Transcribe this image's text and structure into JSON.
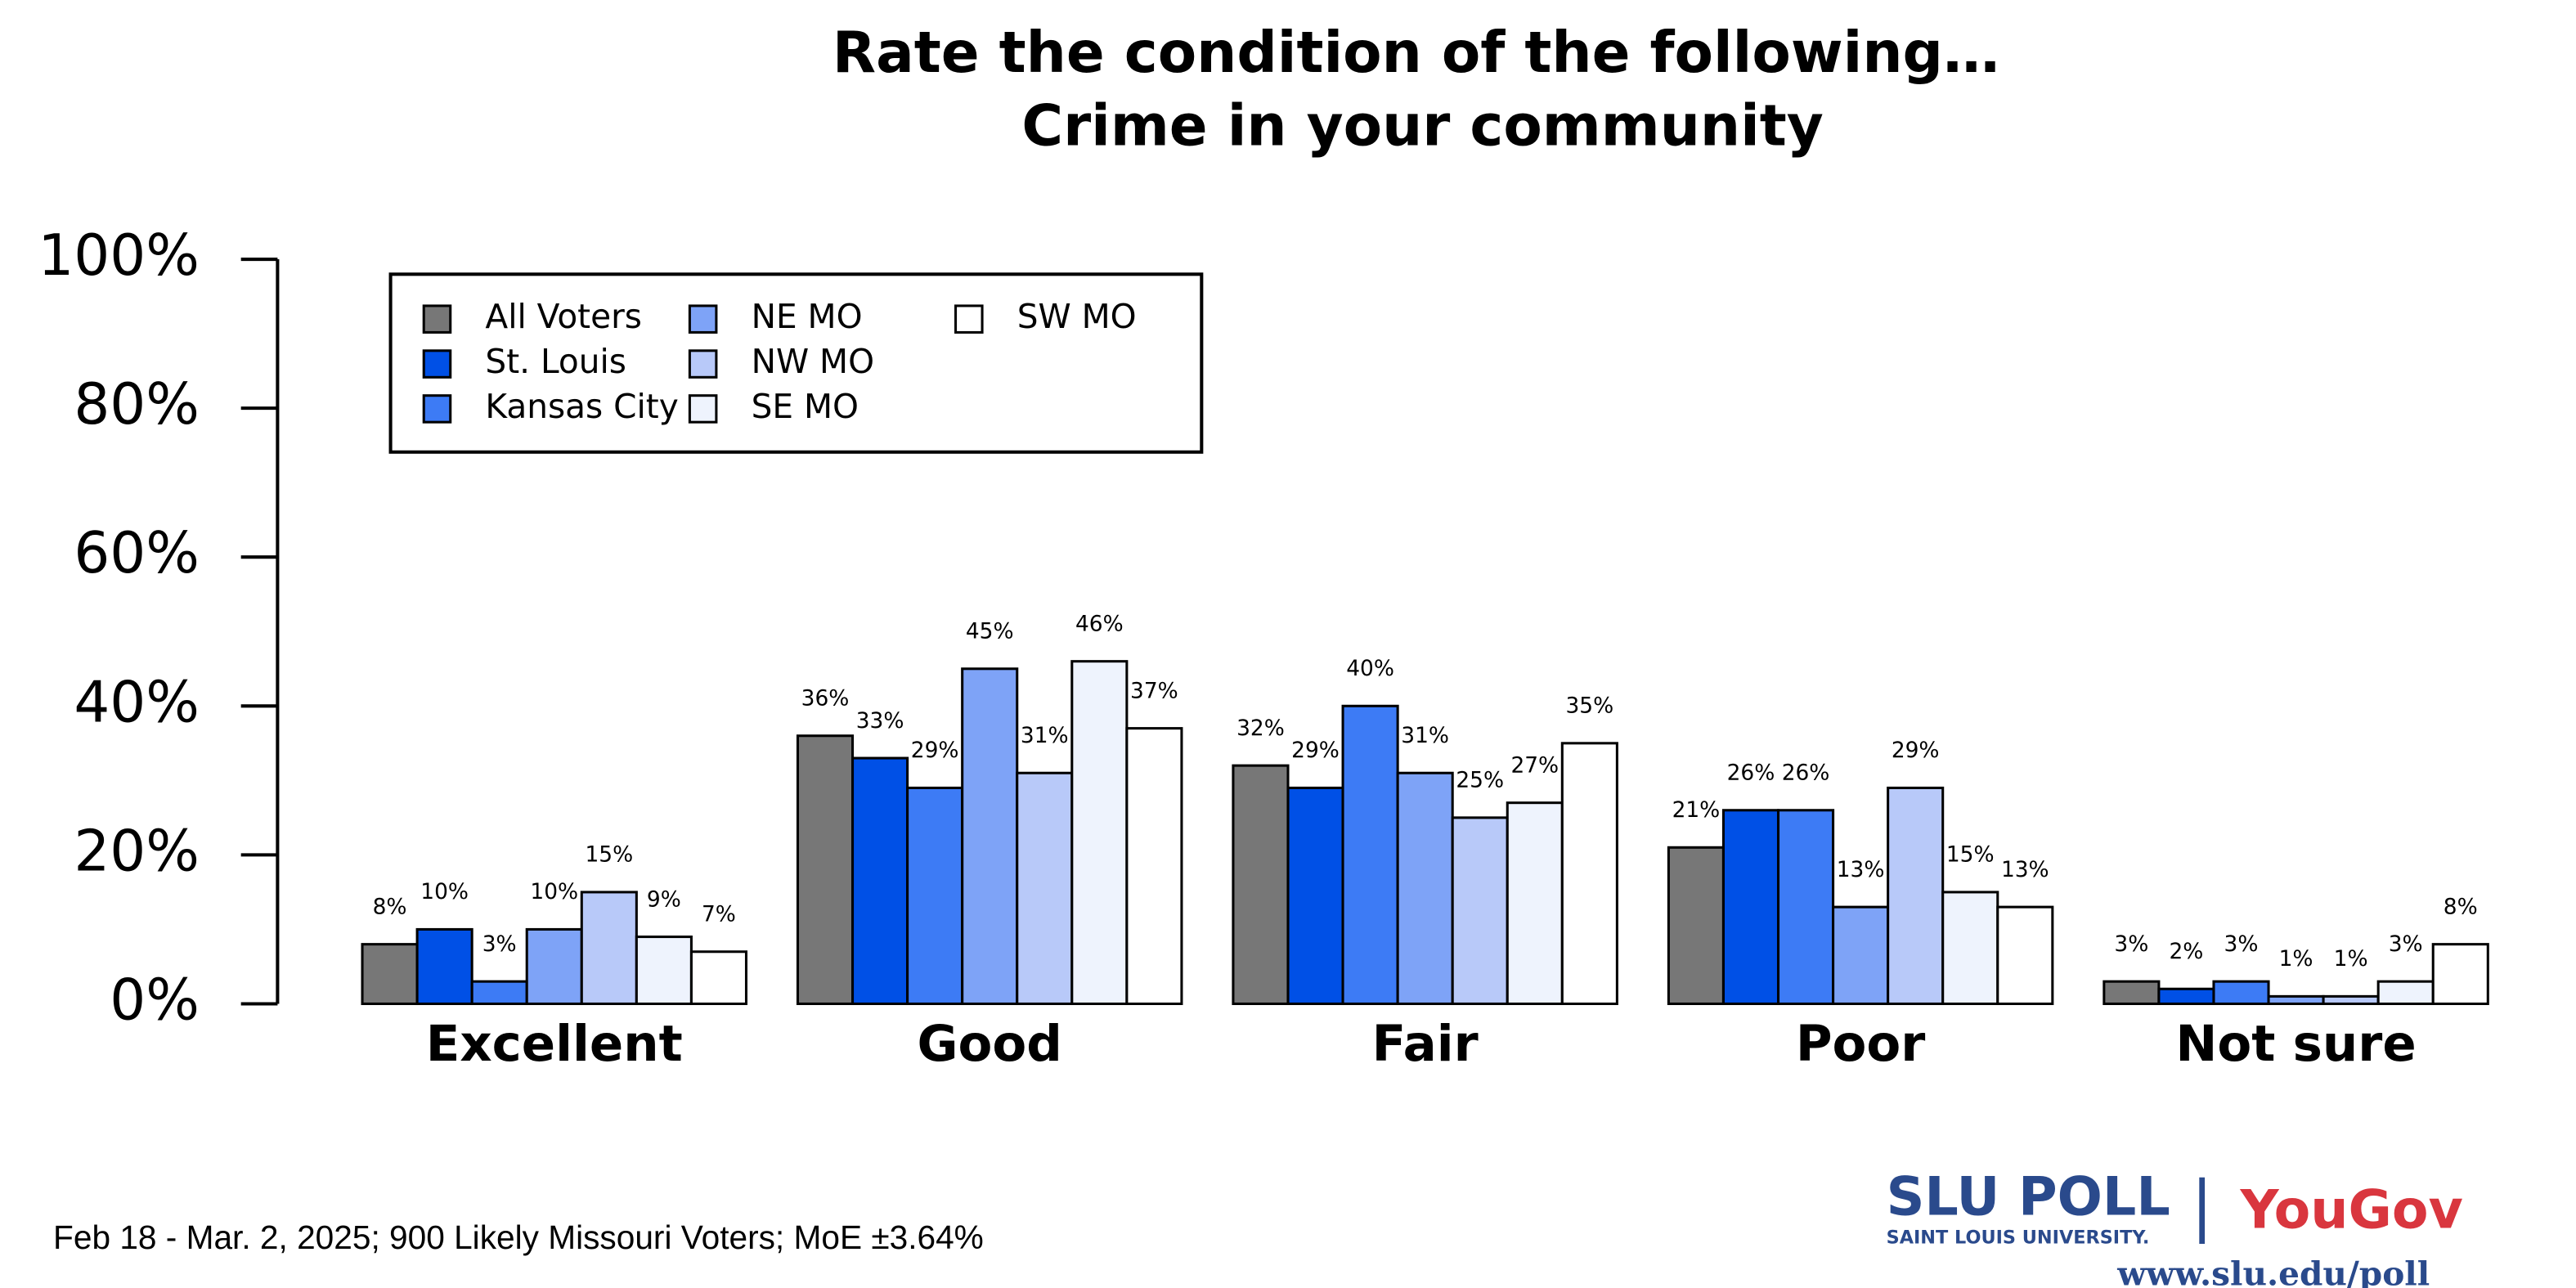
{
  "chart_data": {
    "type": "bar",
    "title": "Rate the condition of the following…",
    "subtitle": "Crime in your community",
    "categories": [
      "Excellent",
      "Good",
      "Fair",
      "Poor",
      "Not sure"
    ],
    "series": [
      {
        "name": "All Voters",
        "color": "#777777",
        "values": [
          8,
          36,
          32,
          21,
          3
        ],
        "value_labels": [
          "8%",
          "36%",
          "32%",
          "21%",
          "3%"
        ]
      },
      {
        "name": "St. Louis",
        "color": "#0050e6",
        "values": [
          10,
          33,
          29,
          26,
          2
        ],
        "value_labels": [
          "10%",
          "33%",
          "29%",
          "26%",
          "2%"
        ]
      },
      {
        "name": "Kansas City",
        "color": "#3d7bf5",
        "values": [
          3,
          29,
          40,
          26,
          3
        ],
        "value_labels": [
          "3%",
          "29%",
          "40%",
          "26%",
          "3%"
        ]
      },
      {
        "name": "NE MO",
        "color": "#7ea3f7",
        "values": [
          10,
          45,
          31,
          13,
          1
        ],
        "value_labels": [
          "10%",
          "45%",
          "31%",
          "13%",
          "1%"
        ]
      },
      {
        "name": "NW MO",
        "color": "#b8c9f9",
        "values": [
          15,
          31,
          25,
          29,
          1
        ],
        "value_labels": [
          "15%",
          "31%",
          "25%",
          "29%",
          "1%"
        ]
      },
      {
        "name": "SE MO",
        "color": "#eef3fd",
        "values": [
          9,
          46,
          27,
          15,
          3
        ],
        "value_labels": [
          "9%",
          "46%",
          "27%",
          "15%",
          "3%"
        ]
      },
      {
        "name": "SW MO",
        "color": "#ffffff",
        "values": [
          7,
          37,
          35,
          13,
          8
        ],
        "value_labels": [
          "7%",
          "37%",
          "35%",
          "13%",
          "8%"
        ]
      }
    ],
    "ylim": [
      0,
      100
    ],
    "yticks": [
      {
        "value": 0,
        "label": "0%"
      },
      {
        "value": 20,
        "label": "20%"
      },
      {
        "value": 40,
        "label": "40%"
      },
      {
        "value": 60,
        "label": "60%"
      },
      {
        "value": 80,
        "label": "80%"
      },
      {
        "value": 100,
        "label": "100%"
      }
    ],
    "grid": false,
    "legend": "top-left",
    "footnote": "Feb 18 - Mar. 2, 2025; 900 Likely Missouri Voters; MoE ±3.64%",
    "logo": {
      "brand": "SLU POLL",
      "university": "SAINT LOUIS UNIVERSITY.",
      "separator": "|",
      "partner": "YouGov",
      "url": "www.slu.edu/poll"
    }
  }
}
